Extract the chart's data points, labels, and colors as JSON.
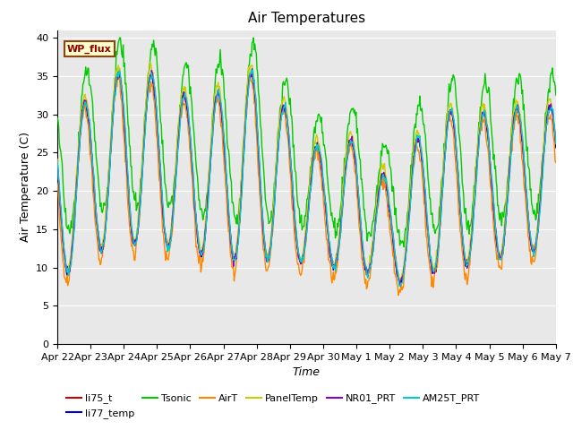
{
  "title": "Air Temperatures",
  "xlabel": "Time",
  "ylabel": "Air Temperature (C)",
  "ylim": [
    0,
    41
  ],
  "yticks": [
    0,
    5,
    10,
    15,
    20,
    25,
    30,
    35,
    40
  ],
  "xtick_labels": [
    "Apr 22",
    "Apr 23",
    "Apr 24",
    "Apr 25",
    "Apr 26",
    "Apr 27",
    "Apr 28",
    "Apr 29",
    "Apr 30",
    "May 1",
    "May 2",
    "May 3",
    "May 4",
    "May 5",
    "May 6",
    "May 7"
  ],
  "legend_label": "WP_flux",
  "legend_facecolor": "#FFFFCC",
  "legend_edgecolor": "#8B4513",
  "legend_text_color": "#8B0000",
  "series_colors": {
    "li75_t": "#CC0000",
    "li77_temp": "#0000CC",
    "Tsonic": "#00CC00",
    "AirT": "#FF8800",
    "PanelTemp": "#CCCC00",
    "NR01_PRT": "#8800CC",
    "AM25T_PRT": "#00CCCC"
  },
  "background_color": "#E8E8E8",
  "grid_color": "#FFFFFF",
  "title_fontsize": 11,
  "axis_label_fontsize": 9,
  "tick_fontsize": 8
}
